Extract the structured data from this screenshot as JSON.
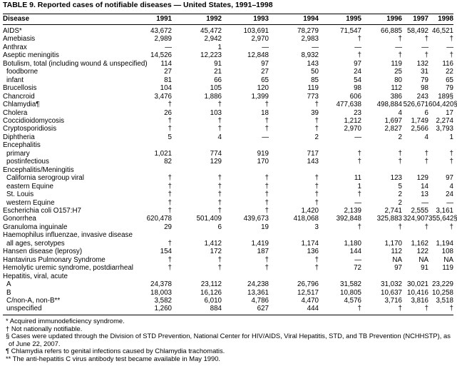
{
  "title": "TABLE 9. Reported cases of notifiable diseases — United States, 1991–1998",
  "table": {
    "columns": [
      "Disease",
      "1991",
      "1992",
      "1993",
      "1994",
      "1995",
      "1996",
      "1997",
      "1998"
    ],
    "rows": [
      {
        "disease": "AIDS*",
        "values": [
          "43,672",
          "45,472",
          "103,691",
          "78,279",
          "71,547",
          "66,885",
          "58,492",
          "46,521"
        ]
      },
      {
        "disease": "Amebiasis",
        "values": [
          "2,989",
          "2,942",
          "2,970",
          "2,983",
          "†",
          "†",
          "†",
          "†"
        ]
      },
      {
        "disease": "Anthrax",
        "values": [
          "—",
          "1",
          "—",
          "—",
          "—",
          "—",
          "—",
          "—"
        ]
      },
      {
        "disease": "Aseptic meningitis",
        "values": [
          "14,526",
          "12,223",
          "12,848",
          "8,932",
          "†",
          "†",
          "†",
          "†"
        ]
      },
      {
        "disease": "Botulism, total (including wound & unspecified)",
        "values": [
          "114",
          "91",
          "97",
          "143",
          "97",
          "119",
          "132",
          "116"
        ],
        "subrows": [
          {
            "disease": "foodborne",
            "values": [
              "27",
              "21",
              "27",
              "50",
              "24",
              "25",
              "31",
              "22"
            ]
          },
          {
            "disease": "infant",
            "values": [
              "81",
              "66",
              "65",
              "85",
              "54",
              "80",
              "79",
              "65"
            ]
          }
        ]
      },
      {
        "disease": "Brucellosis",
        "values": [
          "104",
          "105",
          "120",
          "119",
          "98",
          "112",
          "98",
          "79"
        ]
      },
      {
        "disease": "Chancroid",
        "values": [
          "3,476",
          "1,886",
          "1,399",
          "773",
          "606",
          "386",
          "243",
          "189§"
        ]
      },
      {
        "disease": "Chlamydia¶",
        "values": [
          "†",
          "†",
          "†",
          "†",
          "477,638",
          "498,884",
          "526,671",
          "604,420§"
        ]
      },
      {
        "disease": "Cholera",
        "values": [
          "26",
          "103",
          "18",
          "39",
          "23",
          "4",
          "6",
          "17"
        ]
      },
      {
        "disease": "Coccidioidomycosis",
        "values": [
          "†",
          "†",
          "†",
          "†",
          "1,212",
          "1,697",
          "1,749",
          "2,274"
        ]
      },
      {
        "disease": "Cryptosporidiosis",
        "values": [
          "†",
          "†",
          "†",
          "†",
          "2,970",
          "2,827",
          "2,566",
          "3,793"
        ]
      },
      {
        "disease": "Diphtheria",
        "values": [
          "5",
          "4",
          "—",
          "2",
          "—",
          "2",
          "4",
          "1"
        ]
      },
      {
        "disease": "Encephalitis",
        "subrows": [
          {
            "disease": "primary",
            "values": [
              "1,021",
              "774",
              "919",
              "717",
              "†",
              "†",
              "†",
              "†"
            ]
          },
          {
            "disease": "postinfectious",
            "values": [
              "82",
              "129",
              "170",
              "143",
              "†",
              "†",
              "†",
              "†"
            ]
          }
        ]
      },
      {
        "disease": "Encephalitis/Meningitis",
        "subrows": [
          {
            "disease": "California serogroup viral",
            "values": [
              "†",
              "†",
              "†",
              "†",
              "11",
              "123",
              "129",
              "97"
            ]
          },
          {
            "disease": "eastern Equine",
            "values": [
              "†",
              "†",
              "†",
              "†",
              "1",
              "5",
              "14",
              "4"
            ]
          },
          {
            "disease": "St. Louis",
            "values": [
              "†",
              "†",
              "†",
              "†",
              "†",
              "2",
              "13",
              "24"
            ]
          },
          {
            "disease": "western Equine",
            "values": [
              "†",
              "†",
              "†",
              "†",
              "—",
              "2",
              "—",
              "—"
            ]
          }
        ]
      },
      {
        "disease": "Escherichia coli O157:H7",
        "values": [
          "†",
          "†",
          "†",
          "1,420",
          "2,139",
          "2,741",
          "2,555",
          "3,161"
        ]
      },
      {
        "disease": "Gonorrhea",
        "values": [
          "620,478",
          "501,409",
          "439,673",
          "418,068",
          "392,848",
          "325,883",
          "324,907",
          "355,642§"
        ]
      },
      {
        "disease": "Granuloma inguinale",
        "values": [
          "29",
          "6",
          "19",
          "3",
          "†",
          "†",
          "†",
          "†"
        ]
      },
      {
        "disease": "Haemophilus influenzae, invasive disease",
        "subrows": [
          {
            "disease": "all ages, serotypes",
            "values": [
              "†",
              "1,412",
              "1,419",
              "1,174",
              "1,180",
              "1,170",
              "1,162",
              "1,194"
            ]
          }
        ]
      },
      {
        "disease": "Hansen disease (leprosy)",
        "values": [
          "154",
          "172",
          "187",
          "136",
          "144",
          "112",
          "122",
          "108"
        ]
      },
      {
        "disease": "Hantavirus Pulmonary Syndrome",
        "values": [
          "†",
          "†",
          "†",
          "†",
          "—",
          "NA",
          "NA",
          "NA"
        ]
      },
      {
        "disease": "Hemolytic uremic syndrome, postdiarrheal",
        "values": [
          "†",
          "†",
          "†",
          "†",
          "72",
          "97",
          "91",
          "119"
        ]
      },
      {
        "disease": "Hepatitis, viral, acute",
        "subrows": [
          {
            "disease": "A",
            "values": [
              "24,378",
              "23,112",
              "24,238",
              "26,796",
              "31,582",
              "31,032",
              "30,021",
              "23,229"
            ]
          },
          {
            "disease": "B",
            "values": [
              "18,003",
              "16,126",
              "13,361",
              "12,517",
              "10,805",
              "10,637",
              "10,416",
              "10,258"
            ]
          },
          {
            "disease": "C/non-A, non-B**",
            "values": [
              "3,582",
              "6,010",
              "4,786",
              "4,470",
              "4,576",
              "3,716",
              "3,816",
              "3,518"
            ]
          },
          {
            "disease": "unspecified",
            "values": [
              "1,260",
              "884",
              "627",
              "444",
              "†",
              "†",
              "†",
              "†"
            ]
          }
        ]
      }
    ]
  },
  "footnotes": [
    "* Acquired immunodeficiency syndrome.",
    "† Not nationally notifiable.",
    "§ Cases were updated through the Division of STD Prevention, National Center for HIV/AIDS, Viral Hepatitis, STD, and TB Prevention (NCHHSTP), as of June 22, 2007.",
    "¶ Chlamydia refers to genital infections caused by Chlamydia trachomatis.",
    "** The anti-hepatitis C virus antibody test became available in May 1990."
  ]
}
